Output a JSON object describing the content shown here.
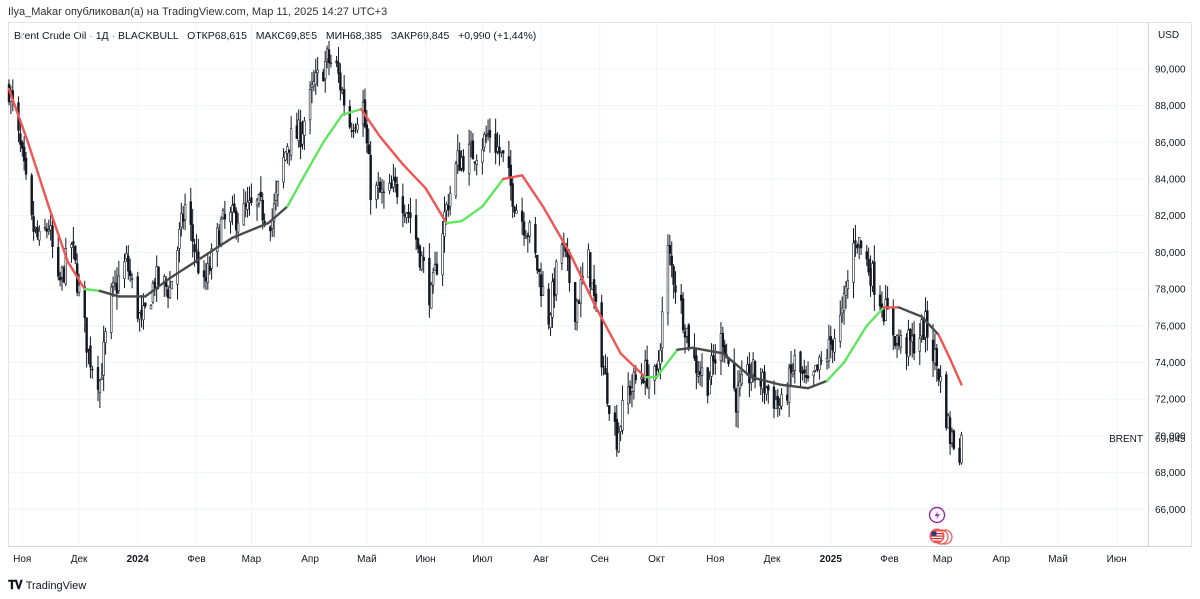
{
  "publisher_line": "Ilya_Makar опубликовал(а) на TradingView.com, Мар 11, 2025 14:27 UTC+3",
  "header": {
    "symbol": "Brent Crude Oil",
    "interval": "1Д",
    "exchange": "BLACKBULL",
    "open_label": "ОТКР",
    "open_value": "68,615",
    "high_label": "МАКС",
    "high_value": "69,855",
    "low_label": "МИН",
    "low_value": "68,385",
    "close_label": "ЗАКР",
    "close_value": "69,845",
    "change": "+0,990 (+1,44%)"
  },
  "currency": "USD",
  "brand": "TradingView",
  "colors": {
    "candle": "#131722",
    "ma_down": "#f05454",
    "ma_up": "#5ee65e",
    "ma_flat": "#4a4a4a",
    "grid": "#f0f3fa",
    "axis_text": "#131722"
  },
  "icons": [
    "lightning-icon",
    "us-flag-icon"
  ],
  "chart_data": {
    "type": "line",
    "title": "",
    "xlabel": "",
    "ylabel": "",
    "ylim": [
      64.0,
      92.5
    ],
    "y_ticks": [
      "90,000",
      "88,000",
      "86,000",
      "84,000",
      "82,000",
      "80,000",
      "78,000",
      "76,000",
      "74,000",
      "72,000",
      "70,000",
      "68,000",
      "66,000"
    ],
    "y_tick_values": [
      90,
      88,
      86,
      84,
      82,
      80,
      78,
      76,
      74,
      72,
      70,
      68,
      66
    ],
    "x_months": [
      {
        "label": "Ноя",
        "date": "2023-11-01",
        "bold": false
      },
      {
        "label": "Дек",
        "date": "2023-12-01",
        "bold": false
      },
      {
        "label": "2024",
        "date": "2024-01-01",
        "bold": true
      },
      {
        "label": "Фев",
        "date": "2024-02-01",
        "bold": false
      },
      {
        "label": "Мар",
        "date": "2024-03-01",
        "bold": false
      },
      {
        "label": "Апр",
        "date": "2024-04-01",
        "bold": false
      },
      {
        "label": "Май",
        "date": "2024-05-01",
        "bold": false
      },
      {
        "label": "Июн",
        "date": "2024-06-01",
        "bold": false
      },
      {
        "label": "Июл",
        "date": "2024-07-01",
        "bold": false
      },
      {
        "label": "Авг",
        "date": "2024-08-01",
        "bold": false
      },
      {
        "label": "Сен",
        "date": "2024-09-01",
        "bold": false
      },
      {
        "label": "Окт",
        "date": "2024-10-01",
        "bold": false
      },
      {
        "label": "Ноя",
        "date": "2024-11-01",
        "bold": false
      },
      {
        "label": "Дек",
        "date": "2024-12-01",
        "bold": false
      },
      {
        "label": "2025",
        "date": "2025-01-01",
        "bold": true
      },
      {
        "label": "Фев",
        "date": "2025-02-01",
        "bold": false
      },
      {
        "label": "Мар",
        "date": "2025-03-01",
        "bold": false
      },
      {
        "label": "Апр",
        "date": "2025-04-01",
        "bold": false
      },
      {
        "label": "Май",
        "date": "2025-05-01",
        "bold": false
      },
      {
        "label": "Июн",
        "date": "2025-06-01",
        "bold": false
      }
    ],
    "x_range": [
      "2023-10-25",
      "2025-06-17"
    ],
    "series": [
      {
        "name": "Brent Crude Oil",
        "kind": "price",
        "points": [
          [
            "2023-10-25",
            89.0
          ],
          [
            "2023-11-01",
            85.0
          ],
          [
            "2023-11-06",
            81.5
          ],
          [
            "2023-11-10",
            80.5
          ],
          [
            "2023-11-15",
            81.5
          ],
          [
            "2023-11-20",
            78.0
          ],
          [
            "2023-11-27",
            80.5
          ],
          [
            "2023-12-06",
            74.5
          ],
          [
            "2023-12-12",
            73.0
          ],
          [
            "2023-12-18",
            77.5
          ],
          [
            "2023-12-26",
            79.5
          ],
          [
            "2024-01-03",
            76.0
          ],
          [
            "2024-01-10",
            78.5
          ],
          [
            "2024-01-18",
            78.0
          ],
          [
            "2024-01-26",
            82.5
          ],
          [
            "2024-02-05",
            78.0
          ],
          [
            "2024-02-14",
            81.5
          ],
          [
            "2024-02-23",
            82.0
          ],
          [
            "2024-03-04",
            82.5
          ],
          [
            "2024-03-12",
            81.8
          ],
          [
            "2024-03-20",
            86.0
          ],
          [
            "2024-03-27",
            86.5
          ],
          [
            "2024-04-03",
            89.0
          ],
          [
            "2024-04-10",
            90.5
          ],
          [
            "2024-04-15",
            90.0
          ],
          [
            "2024-04-22",
            87.0
          ],
          [
            "2024-04-29",
            88.0
          ],
          [
            "2024-05-03",
            83.5
          ],
          [
            "2024-05-10",
            83.0
          ],
          [
            "2024-05-17",
            83.5
          ],
          [
            "2024-05-24",
            82.0
          ],
          [
            "2024-06-04",
            77.5
          ],
          [
            "2024-06-11",
            82.0
          ],
          [
            "2024-06-18",
            85.0
          ],
          [
            "2024-06-27",
            85.5
          ],
          [
            "2024-07-05",
            86.5
          ],
          [
            "2024-07-12",
            85.0
          ],
          [
            "2024-07-19",
            82.5
          ],
          [
            "2024-07-26",
            81.0
          ],
          [
            "2024-08-05",
            76.5
          ],
          [
            "2024-08-12",
            80.5
          ],
          [
            "2024-08-19",
            77.0
          ],
          [
            "2024-08-26",
            79.5
          ],
          [
            "2024-09-04",
            73.0
          ],
          [
            "2024-09-10",
            70.0
          ],
          [
            "2024-09-16",
            72.5
          ],
          [
            "2024-09-24",
            73.5
          ],
          [
            "2024-10-01",
            73.0
          ],
          [
            "2024-10-07",
            80.0
          ],
          [
            "2024-10-14",
            77.0
          ],
          [
            "2024-10-21",
            74.0
          ],
          [
            "2024-10-28",
            73.0
          ],
          [
            "2024-11-05",
            75.5
          ],
          [
            "2024-11-12",
            72.0
          ],
          [
            "2024-11-20",
            73.5
          ],
          [
            "2024-11-29",
            72.5
          ],
          [
            "2024-12-06",
            71.5
          ],
          [
            "2024-12-13",
            74.0
          ],
          [
            "2024-12-20",
            72.5
          ],
          [
            "2024-12-30",
            74.5
          ],
          [
            "2025-01-07",
            76.5
          ],
          [
            "2025-01-14",
            81.0
          ],
          [
            "2025-01-22",
            79.0
          ],
          [
            "2025-01-29",
            77.0
          ],
          [
            "2025-02-06",
            75.0
          ],
          [
            "2025-02-13",
            75.0
          ],
          [
            "2025-02-20",
            76.0
          ],
          [
            "2025-02-27",
            73.5
          ],
          [
            "2025-03-05",
            70.0
          ],
          [
            "2025-03-10",
            69.3
          ],
          [
            "2025-03-11",
            69.845
          ]
        ]
      },
      {
        "name": "MA",
        "kind": "moving-average",
        "points": [
          [
            "2023-10-25",
            88.9,
            "down"
          ],
          [
            "2023-11-04",
            86.0,
            "down"
          ],
          [
            "2023-11-15",
            82.5,
            "down"
          ],
          [
            "2023-11-25",
            79.5,
            "down"
          ],
          [
            "2023-12-04",
            78.0,
            "down"
          ],
          [
            "2023-12-12",
            77.9,
            "up"
          ],
          [
            "2023-12-22",
            77.6,
            "flat"
          ],
          [
            "2024-01-05",
            77.6,
            "flat"
          ],
          [
            "2024-01-18",
            78.6,
            "flat"
          ],
          [
            "2024-02-02",
            79.6,
            "flat"
          ],
          [
            "2024-02-20",
            80.8,
            "flat"
          ],
          [
            "2024-03-10",
            81.6,
            "flat"
          ],
          [
            "2024-03-20",
            82.5,
            "flat"
          ],
          [
            "2024-03-28",
            84.0,
            "up"
          ],
          [
            "2024-04-08",
            86.0,
            "up"
          ],
          [
            "2024-04-18",
            87.5,
            "up"
          ],
          [
            "2024-04-28",
            87.8,
            "up"
          ],
          [
            "2024-05-08",
            86.3,
            "down"
          ],
          [
            "2024-05-20",
            84.8,
            "down"
          ],
          [
            "2024-06-01",
            83.5,
            "down"
          ],
          [
            "2024-06-12",
            81.6,
            "down"
          ],
          [
            "2024-06-20",
            81.7,
            "up"
          ],
          [
            "2024-07-01",
            82.5,
            "up"
          ],
          [
            "2024-07-12",
            84.0,
            "up"
          ],
          [
            "2024-07-22",
            84.2,
            "down"
          ],
          [
            "2024-08-02",
            82.5,
            "down"
          ],
          [
            "2024-08-16",
            80.0,
            "down"
          ],
          [
            "2024-08-30",
            77.0,
            "down"
          ],
          [
            "2024-09-12",
            74.5,
            "down"
          ],
          [
            "2024-09-25",
            73.2,
            "down"
          ],
          [
            "2024-10-01",
            73.2,
            "up"
          ],
          [
            "2024-10-12",
            74.7,
            "up"
          ],
          [
            "2024-10-20",
            74.8,
            "flat"
          ],
          [
            "2024-11-05",
            74.5,
            "flat"
          ],
          [
            "2024-11-20",
            73.2,
            "flat"
          ],
          [
            "2024-12-05",
            72.8,
            "flat"
          ],
          [
            "2024-12-20",
            72.6,
            "flat"
          ],
          [
            "2024-12-30",
            73.0,
            "flat"
          ],
          [
            "2025-01-08",
            74.0,
            "up"
          ],
          [
            "2025-01-20",
            76.0,
            "up"
          ],
          [
            "2025-01-29",
            77.0,
            "up"
          ],
          [
            "2025-02-06",
            77.0,
            "down"
          ],
          [
            "2025-02-18",
            76.5,
            "flat"
          ],
          [
            "2025-02-27",
            75.5,
            "flat"
          ],
          [
            "2025-03-05",
            74.2,
            "down"
          ],
          [
            "2025-03-11",
            72.8,
            "down"
          ]
        ]
      }
    ],
    "annotations": [
      {
        "text": "BRENT",
        "y": 69.845
      },
      {
        "text": "69,845",
        "y": 69.845
      }
    ],
    "grid": true,
    "legend": "none"
  }
}
